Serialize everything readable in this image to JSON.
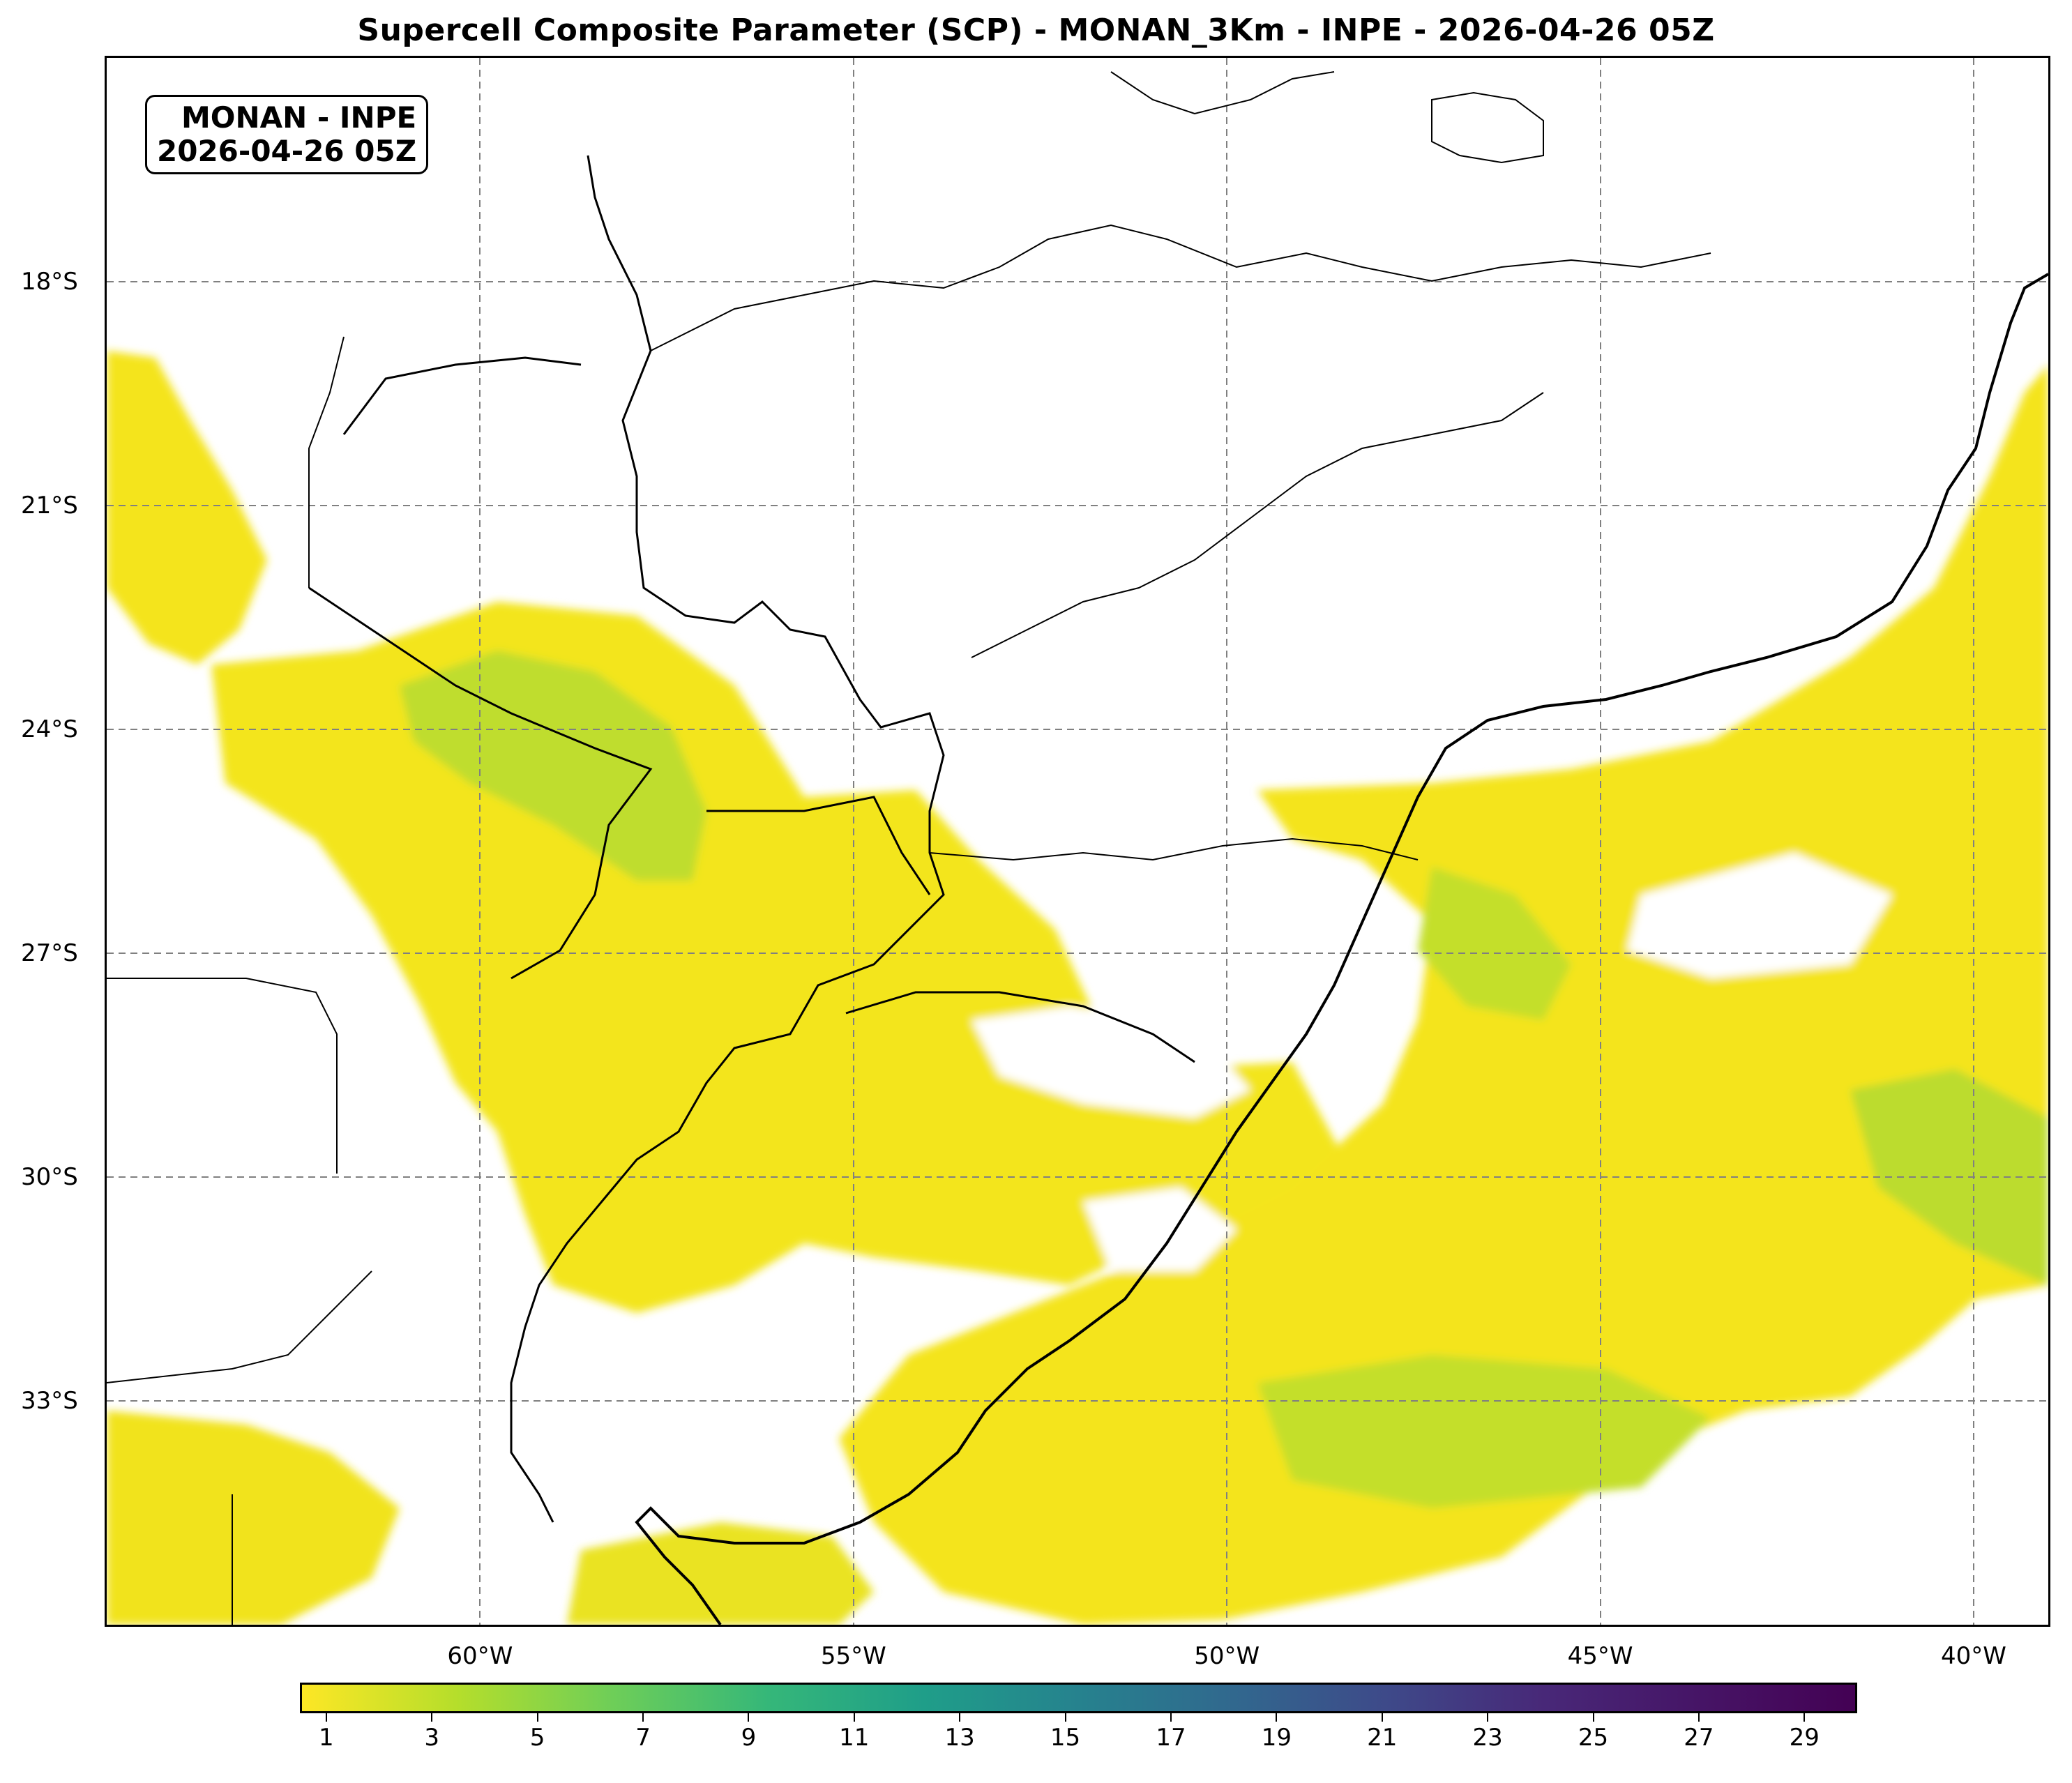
{
  "title": "Supercell Composite Parameter (SCP) - MONAN_3Km - INPE - 2026-04-26 05Z",
  "info_box": {
    "line1": "MONAN - INPE",
    "line2": "2026-04-26 05Z"
  },
  "latitudes": [
    {
      "label": "18°S",
      "lat": -18
    },
    {
      "label": "21°S",
      "lat": -21
    },
    {
      "label": "24°S",
      "lat": -24
    },
    {
      "label": "27°S",
      "lat": -27
    },
    {
      "label": "30°S",
      "lat": -30
    },
    {
      "label": "33°S",
      "lat": -33
    }
  ],
  "longitudes": [
    {
      "label": "60°W",
      "lon": -60
    },
    {
      "label": "55°W",
      "lon": -55
    },
    {
      "label": "50°W",
      "lon": -50
    },
    {
      "label": "45°W",
      "lon": -45
    },
    {
      "label": "40°W",
      "lon": -40
    }
  ],
  "map_extent": {
    "lon_min": -65,
    "lon_max": -39,
    "lat_min": -36,
    "lat_max": -15
  },
  "colorbar": {
    "colormap": "viridis_r",
    "min": 0.5,
    "max": 30,
    "ticks": [
      "1",
      "3",
      "5",
      "7",
      "9",
      "11",
      "13",
      "15",
      "17",
      "19",
      "21",
      "23",
      "25",
      "27",
      "29"
    ]
  },
  "colors": {
    "low": "#fde725",
    "mid": "#35b779",
    "high": "#440154",
    "grid": "#808080",
    "border": "#000000"
  }
}
